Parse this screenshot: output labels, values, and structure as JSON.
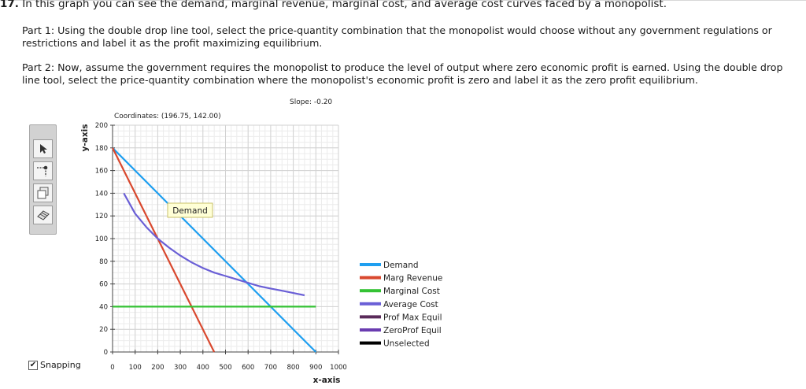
{
  "question": {
    "number": "17.",
    "text": "In this graph you can see the demand, marginal revenue, marginal cost, and average cost curves faced by a monopolist.",
    "part1": "Part 1: Using the double drop line tool, select the price-quantity combination that the monopolist would choose without any government regulations or restrictions and label it as the profit maximizing equilibrium.",
    "part2": "Part 2: Now, assume the government requires the monopolist to produce the level of output where zero economic profit is earned. Using the double drop line tool, select the price-quantity combination where the monopolist's economic profit is zero and label it as the zero profit equilibrium."
  },
  "graph": {
    "coordinates_text": "Coordinates: (196.75, 142.00)",
    "slope_text": "Slope: -0.20",
    "hover_label": "Demand",
    "snapping_label": "Snapping",
    "snapping_checked": true
  },
  "tools": [
    {
      "name": "pointer-tool",
      "icon": "arrow-pointer-icon"
    },
    {
      "name": "double-drop-line-tool",
      "icon": "drop-line-icon"
    },
    {
      "name": "copy-tool",
      "icon": "copy-icon"
    },
    {
      "name": "eraser-tool",
      "icon": "eraser-icon"
    }
  ],
  "chart_data": {
    "type": "line",
    "xlabel": "x-axis",
    "ylabel": "y-axis",
    "xlim": [
      0,
      1000
    ],
    "ylim": [
      0,
      200
    ],
    "x_ticks": [
      "0",
      "100",
      "200",
      "300",
      "400",
      "500",
      "600",
      "700",
      "800",
      "900",
      "1000"
    ],
    "y_ticks": [
      "0",
      "20",
      "40",
      "60",
      "80",
      "100",
      "120",
      "140",
      "160",
      "180",
      "200"
    ],
    "grid": true,
    "legend_position": "right",
    "series": [
      {
        "name": "Demand",
        "color": "#1f9ff0",
        "points": [
          [
            0,
            180
          ],
          [
            900,
            0
          ]
        ]
      },
      {
        "name": "Marg Revenue",
        "color": "#d9482e",
        "points": [
          [
            0,
            180
          ],
          [
            450,
            0
          ]
        ]
      },
      {
        "name": "Marginal Cost",
        "color": "#34c234",
        "points": [
          [
            0,
            40
          ],
          [
            900,
            40
          ]
        ]
      },
      {
        "name": "Average Cost",
        "color": "#6a5fd6",
        "points": [
          [
            50,
            140
          ],
          [
            100,
            122
          ],
          [
            150,
            110
          ],
          [
            200,
            100
          ],
          [
            250,
            92
          ],
          [
            300,
            85
          ],
          [
            350,
            79
          ],
          [
            400,
            74
          ],
          [
            450,
            70
          ],
          [
            500,
            67
          ],
          [
            550,
            64
          ],
          [
            600,
            61
          ],
          [
            650,
            58
          ],
          [
            700,
            56
          ],
          [
            750,
            54
          ],
          [
            800,
            52
          ],
          [
            850,
            50
          ]
        ]
      }
    ],
    "legend": [
      {
        "name": "Demand",
        "color": "#1f9ff0"
      },
      {
        "name": "Marg Revenue",
        "color": "#d9482e"
      },
      {
        "name": "Marginal Cost",
        "color": "#34c234"
      },
      {
        "name": "Average Cost",
        "color": "#6a5fd6"
      },
      {
        "name": "Prof Max Equil",
        "color": "#5a2a5a"
      },
      {
        "name": "ZeroProf Equil",
        "color": "#6a3cb0"
      },
      {
        "name": "Unselected",
        "color": "#000000"
      }
    ]
  }
}
